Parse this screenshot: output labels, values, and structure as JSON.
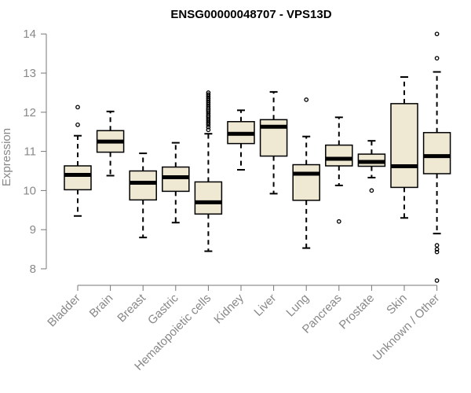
{
  "chart_data": {
    "type": "box",
    "title": "ENSG00000048707 - VPS13D",
    "xlabel": "",
    "ylabel": "Expression",
    "ylim": [
      7.7,
      14.2
    ],
    "yticks": [
      8,
      9,
      10,
      11,
      12,
      13,
      14
    ],
    "box_color": "#efe8d2",
    "categories": [
      "Bladder",
      "Brain",
      "Breast",
      "Gastric",
      "Hematopoietic cells",
      "Kidney",
      "Liver",
      "Lung",
      "Pancreas",
      "Prostate",
      "Skin",
      "Unknown / Other"
    ],
    "boxes": [
      {
        "name": "Bladder",
        "whisker_low": 9.35,
        "q1": 10.02,
        "median": 10.4,
        "q3": 10.63,
        "whisker_high": 11.4,
        "outliers": [
          11.68,
          12.13
        ]
      },
      {
        "name": "Brain",
        "whisker_low": 10.38,
        "q1": 10.98,
        "median": 11.25,
        "q3": 11.53,
        "whisker_high": 12.02,
        "outliers": []
      },
      {
        "name": "Breast",
        "whisker_low": 8.8,
        "q1": 9.76,
        "median": 10.2,
        "q3": 10.5,
        "whisker_high": 10.95,
        "outliers": []
      },
      {
        "name": "Gastric",
        "whisker_low": 9.18,
        "q1": 9.98,
        "median": 10.34,
        "q3": 10.6,
        "whisker_high": 11.22,
        "outliers": []
      },
      {
        "name": "Hematopoietic cells",
        "whisker_low": 8.45,
        "q1": 9.4,
        "median": 9.7,
        "q3": 10.22,
        "whisker_high": 11.45,
        "outliers": [
          11.55,
          11.62,
          11.68,
          11.73,
          11.78,
          11.83,
          11.88,
          11.92,
          11.97,
          12.02,
          12.06,
          12.1,
          12.15,
          12.2,
          12.25,
          12.3,
          12.35,
          12.4,
          12.45,
          12.5
        ]
      },
      {
        "name": "Kidney",
        "whisker_low": 10.53,
        "q1": 11.2,
        "median": 11.45,
        "q3": 11.76,
        "whisker_high": 12.05,
        "outliers": []
      },
      {
        "name": "Liver",
        "whisker_low": 9.92,
        "q1": 10.88,
        "median": 11.63,
        "q3": 11.81,
        "whisker_high": 12.52,
        "outliers": []
      },
      {
        "name": "Lung",
        "whisker_low": 8.53,
        "q1": 9.75,
        "median": 10.43,
        "q3": 10.66,
        "whisker_high": 11.38,
        "outliers": [
          12.32
        ]
      },
      {
        "name": "Pancreas",
        "whisker_low": 10.13,
        "q1": 10.63,
        "median": 10.81,
        "q3": 11.16,
        "whisker_high": 11.87,
        "outliers": [
          9.21
        ]
      },
      {
        "name": "Prostate",
        "whisker_low": 10.33,
        "q1": 10.62,
        "median": 10.73,
        "q3": 10.93,
        "whisker_high": 11.27,
        "outliers": [
          10.0
        ]
      },
      {
        "name": "Skin",
        "whisker_low": 9.3,
        "q1": 10.08,
        "median": 10.62,
        "q3": 12.22,
        "whisker_high": 12.9,
        "outliers": []
      },
      {
        "name": "Unknown / Other",
        "whisker_low": 8.9,
        "q1": 10.43,
        "median": 10.88,
        "q3": 11.48,
        "whisker_high": 13.03,
        "outliers": [
          13.38,
          14.0,
          8.6,
          8.5,
          8.43,
          7.7
        ]
      }
    ]
  }
}
